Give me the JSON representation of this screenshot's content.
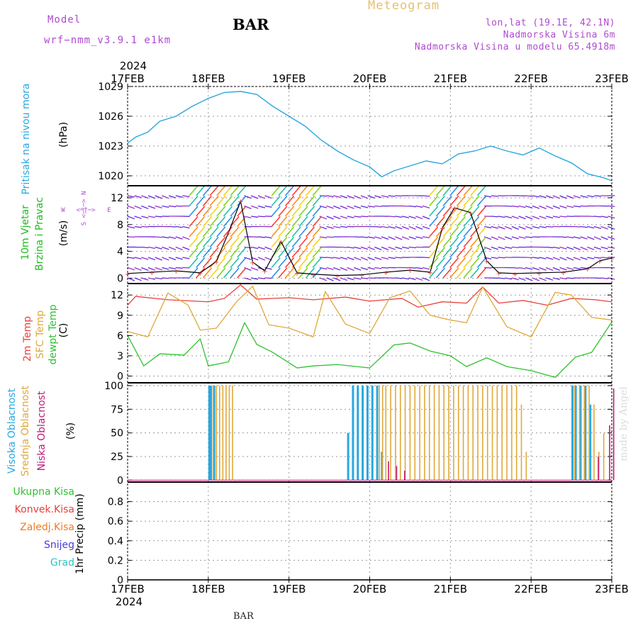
{
  "header": {
    "model_label": "Model",
    "model_name": "wrf−nmm_v3.9.1 e1km",
    "station": "BAR",
    "subtitle": "Meteogram",
    "lonlat": "lon,lat (19.1E, 42.1N)",
    "elevation": "Nadmorska Visina 6m",
    "model_elevation": "Nadmorska Visina u modelu 65.4918m"
  },
  "footer_label": "BAR",
  "credit": "made by Angel",
  "colors": {
    "pressure": "#2aa7e0",
    "temp2m": "#e8413a",
    "sfc_temp": "#e0a93a",
    "dewpt": "#2ec22e",
    "cloud_high": "#2aa7e0",
    "cloud_mid": "#e0a93a",
    "cloud_low": "#c0197a",
    "wind_label": "#22bb22",
    "violet": "#b04ad0"
  },
  "chart_data": [
    {
      "type": "line",
      "panel": "pressure",
      "title": "Pritisak na nivou mora",
      "ylabel": "(hPa)",
      "ylim": [
        1019,
        1029
      ],
      "yticks": [
        1020,
        1023,
        1026,
        1029
      ],
      "x_year_top": "2024",
      "x_year_bottom": "2024",
      "x_ticks": [
        "17FEB",
        "18FEB",
        "19FEB",
        "20FEB",
        "21FEB",
        "22FEB",
        "23FEB"
      ],
      "x_days": [
        0,
        1,
        2,
        3,
        4,
        5,
        6
      ],
      "grid": true,
      "series": [
        {
          "name": "Pritisak na nivou mora",
          "x": [
            0,
            0.1,
            0.25,
            0.4,
            0.6,
            0.8,
            1.0,
            1.2,
            1.4,
            1.6,
            1.8,
            2.0,
            2.2,
            2.4,
            2.6,
            2.8,
            3.0,
            3.15,
            3.3,
            3.5,
            3.7,
            3.9,
            4.1,
            4.3,
            4.5,
            4.7,
            4.9,
            5.1,
            5.3,
            5.5,
            5.7,
            5.9,
            6.0
          ],
          "y": [
            1023.3,
            1023.9,
            1024.4,
            1025.5,
            1026.0,
            1027.0,
            1027.8,
            1028.4,
            1028.5,
            1028.2,
            1027.0,
            1026.0,
            1025.0,
            1023.6,
            1022.5,
            1021.6,
            1020.9,
            1019.9,
            1020.5,
            1021.0,
            1021.5,
            1021.2,
            1022.2,
            1022.5,
            1023.0,
            1022.5,
            1022.1,
            1022.8,
            1022.0,
            1021.3,
            1020.2,
            1019.8,
            1019.5
          ]
        }
      ]
    },
    {
      "type": "line",
      "panel": "wind",
      "title": "10m Vjetar Brzina i Pravac",
      "ylabel": "(m/s)",
      "ylim": [
        -0.8,
        13.8
      ],
      "yticks": [
        0,
        4,
        8,
        12
      ],
      "grid": true,
      "compass": [
        "N",
        "S",
        "W",
        "E"
      ],
      "series": [
        {
          "name": "10m Vjetar",
          "x": [
            0,
            0.3,
            0.6,
            0.9,
            1.1,
            1.25,
            1.4,
            1.55,
            1.7,
            1.9,
            2.1,
            2.3,
            2.6,
            2.9,
            3.2,
            3.5,
            3.75,
            3.9,
            4.05,
            4.25,
            4.45,
            4.6,
            4.8,
            5.1,
            5.4,
            5.7,
            5.85,
            6.0
          ],
          "y": [
            0.7,
            0.9,
            1.1,
            0.8,
            2.5,
            6.8,
            11.5,
            2.4,
            1.1,
            5.5,
            0.8,
            0.6,
            0.4,
            0.5,
            0.9,
            1.2,
            0.9,
            7.5,
            10.5,
            9.8,
            2.6,
            0.8,
            0.7,
            0.8,
            0.9,
            1.4,
            2.6,
            3.0
          ]
        }
      ]
    },
    {
      "type": "line",
      "panel": "temperature",
      "ylabel": "(C)",
      "ylim": [
        -1,
        13.7
      ],
      "yticks": [
        0,
        3,
        6,
        9,
        12
      ],
      "grid": true,
      "series": [
        {
          "name": "2m Temp",
          "x": [
            0,
            0.1,
            0.5,
            1.0,
            1.2,
            1.4,
            1.6,
            2.0,
            2.3,
            2.7,
            3.0,
            3.4,
            3.6,
            3.9,
            4.2,
            4.4,
            4.6,
            4.9,
            5.2,
            5.5,
            5.8,
            6.0
          ],
          "y": [
            10.5,
            11.8,
            11.3,
            11.0,
            11.5,
            13.5,
            11.4,
            11.6,
            11.3,
            11.7,
            11.1,
            11.5,
            10.2,
            11.0,
            10.8,
            13.2,
            10.8,
            11.2,
            10.5,
            11.5,
            11.3,
            11.0
          ]
        },
        {
          "name": "SFC Temp",
          "x": [
            0,
            0.25,
            0.5,
            0.75,
            0.9,
            1.1,
            1.35,
            1.55,
            1.75,
            2.0,
            2.3,
            2.45,
            2.7,
            3.0,
            3.25,
            3.5,
            3.75,
            4.0,
            4.2,
            4.4,
            4.7,
            5.0,
            5.3,
            5.5,
            5.75,
            6.0
          ],
          "y": [
            6.6,
            5.8,
            12.3,
            10.5,
            6.8,
            7.1,
            11.0,
            13.3,
            7.6,
            7.1,
            5.8,
            12.5,
            7.7,
            6.3,
            11.6,
            12.6,
            9.0,
            8.3,
            7.9,
            13.2,
            7.3,
            5.8,
            12.4,
            12.0,
            8.7,
            8.3
          ]
        },
        {
          "name": "dewpt Temp",
          "x": [
            0,
            0.2,
            0.4,
            0.7,
            0.9,
            1.0,
            1.25,
            1.45,
            1.6,
            1.8,
            2.1,
            2.3,
            2.6,
            3.0,
            3.3,
            3.5,
            3.75,
            4.0,
            4.2,
            4.45,
            4.7,
            5.0,
            5.3,
            5.55,
            5.75,
            6.0
          ],
          "y": [
            6.0,
            1.5,
            3.3,
            3.1,
            5.5,
            1.5,
            2.1,
            7.9,
            4.7,
            3.5,
            1.2,
            1.5,
            1.7,
            1.2,
            4.6,
            4.9,
            3.7,
            3.0,
            1.4,
            2.7,
            1.4,
            0.8,
            -0.2,
            2.8,
            3.5,
            8.0
          ]
        }
      ]
    },
    {
      "type": "bar",
      "panel": "clouds",
      "ylabel": "(%)",
      "ylim": [
        -2,
        103
      ],
      "yticks": [
        0,
        25,
        50,
        75,
        100
      ],
      "grid": true,
      "series": [
        {
          "name": "Visoka Oblacnost",
          "x": [
            1.0,
            1.02,
            1.06,
            2.72,
            2.78,
            2.84,
            2.9,
            2.96,
            3.02,
            3.08,
            3.14,
            5.5,
            5.54,
            5.6,
            5.66,
            5.72
          ],
          "values": [
            100,
            100,
            100,
            50,
            100,
            100,
            100,
            100,
            100,
            100,
            30,
            100,
            100,
            100,
            100,
            80
          ]
        },
        {
          "name": "Srednja Oblacnost",
          "x": [
            1.04,
            1.08,
            1.12,
            1.16,
            1.2,
            1.24,
            1.28,
            3.1,
            3.14,
            3.18,
            3.24,
            3.3,
            3.36,
            3.42,
            3.48,
            3.54,
            3.6,
            3.66,
            3.72,
            3.78,
            3.84,
            3.9,
            3.96,
            4.02,
            4.08,
            4.14,
            4.2,
            4.26,
            4.32,
            4.38,
            4.44,
            4.5,
            4.56,
            4.62,
            4.68,
            4.74,
            4.8,
            4.86,
            4.92,
            5.52,
            5.58,
            5.64,
            5.7,
            5.76,
            5.82,
            5.88
          ],
          "values": [
            100,
            100,
            100,
            100,
            100,
            100,
            100,
            100,
            100,
            100,
            100,
            100,
            100,
            100,
            100,
            100,
            100,
            100,
            100,
            100,
            100,
            100,
            100,
            100,
            100,
            100,
            100,
            100,
            100,
            100,
            100,
            100,
            100,
            100,
            100,
            100,
            100,
            80,
            30,
            100,
            100,
            100,
            100,
            80,
            30,
            50
          ]
        },
        {
          "name": "Niska Oblacnost",
          "x": [
            3.2,
            3.3,
            3.4,
            5.8,
            5.94,
            5.99
          ],
          "values": [
            20,
            15,
            10,
            25,
            58,
            97
          ]
        }
      ]
    },
    {
      "type": "line",
      "panel": "precipitation",
      "ylabel": "1hr Precip (mm)",
      "ylim": [
        0,
        1.0
      ],
      "yticks": [
        0,
        0.2,
        0.4,
        0.6,
        0.8
      ],
      "grid": true,
      "legend": [
        "Ukupna Kisa",
        "Konvek.Kisa",
        "Zaledj.Kisa",
        "Snijeg",
        "Grad"
      ],
      "series": [
        {
          "name": "Ukupna Kisa",
          "x": [
            0,
            6
          ],
          "y": [
            0,
            0
          ]
        },
        {
          "name": "Konvek.Kisa",
          "x": [
            0,
            6
          ],
          "y": [
            0,
            0
          ]
        },
        {
          "name": "Zaledj.Kisa",
          "x": [
            0,
            6
          ],
          "y": [
            0,
            0
          ]
        },
        {
          "name": "Snijeg",
          "x": [
            0,
            6
          ],
          "y": [
            0,
            0
          ]
        },
        {
          "name": "Grad",
          "x": [
            0,
            6
          ],
          "y": [
            0,
            0
          ]
        }
      ]
    }
  ]
}
